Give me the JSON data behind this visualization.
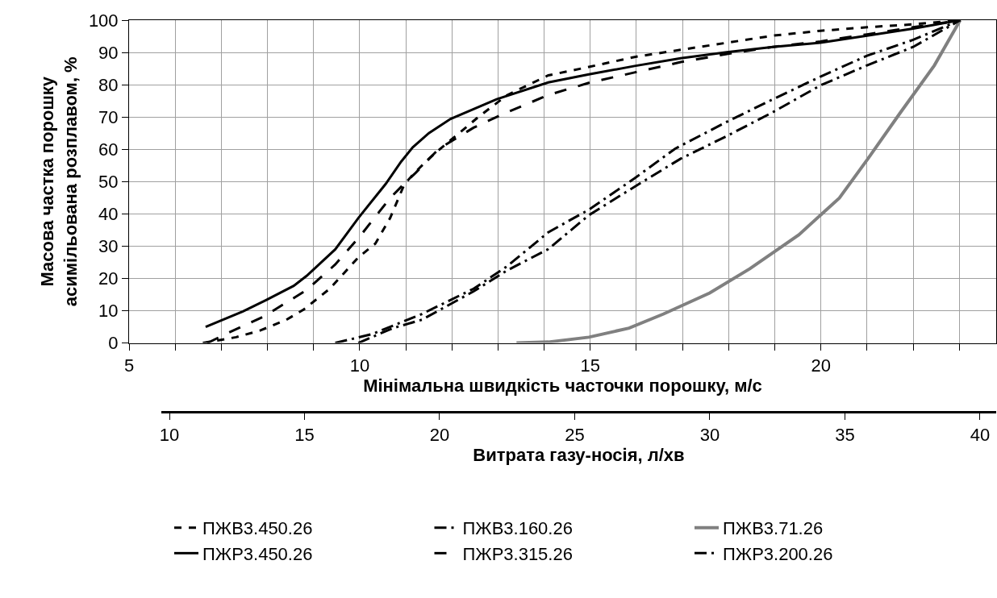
{
  "chart_data": {
    "type": "line",
    "xlabel": "Мінімальна швидкість часточки порошку, м/с",
    "ylabel": "Масова частка порошку асимільована розплавом, %",
    "x2label": "Витрата газу-носія, л/хв",
    "xlim": [
      5,
      23.8
    ],
    "ylim": [
      0,
      100
    ],
    "xticks": [
      5,
      {
        "value": 6,
        "label": null
      },
      {
        "value": 7,
        "label": null
      },
      {
        "value": 8,
        "label": null
      },
      {
        "value": 9,
        "label": null
      },
      10,
      {
        "value": 11,
        "label": null
      },
      {
        "value": 12,
        "label": null
      },
      {
        "value": 13,
        "label": null
      },
      {
        "value": 14,
        "label": null
      },
      15,
      {
        "value": 16,
        "label": null
      },
      {
        "value": 17,
        "label": null
      },
      {
        "value": 18,
        "label": null
      },
      {
        "value": 19,
        "label": null
      },
      20,
      {
        "value": 21,
        "label": null
      },
      {
        "value": 22,
        "label": null
      },
      {
        "value": 23,
        "label": null
      }
    ],
    "yticks": [
      0,
      10,
      20,
      30,
      40,
      50,
      60,
      70,
      80,
      90,
      100
    ],
    "x2lim": [
      9.7,
      40.6
    ],
    "x2ticks": [
      10,
      15,
      20,
      25,
      30,
      35,
      40
    ],
    "grid": true,
    "legend": "bottom",
    "marker": "none",
    "series": [
      {
        "name": "ПЖВ3.450.26",
        "color": "#000000",
        "line_style": "dotted",
        "x": [
          6.6,
          7.32,
          7.85,
          8.41,
          8.78,
          9.35,
          9.97,
          10.34,
          10.66,
          10.97,
          11.19,
          11.53,
          11.97,
          12.59,
          13.2,
          14.09,
          14.97,
          15.96,
          16.96,
          17.96,
          18.96,
          19.99,
          21.0,
          22.0,
          23.02
        ],
        "values": [
          0,
          1.8,
          3.9,
          7.2,
          10.3,
          16.8,
          26.5,
          30.8,
          38.7,
          49.2,
          52.7,
          57.5,
          62.8,
          70.2,
          76.8,
          82.9,
          85.5,
          88.6,
          90.8,
          93.0,
          95.2,
          96.7,
          97.8,
          98.7,
          100
        ]
      },
      {
        "name": "ПЖВ3.160.26",
        "color": "#000000",
        "line_style": "dashdot",
        "x": [
          9.47,
          10.28,
          11.35,
          12.47,
          13.2,
          14.09,
          14.97,
          15.96,
          16.84,
          17.96,
          18.96,
          19.99,
          21.0,
          22.0,
          23.02
        ],
        "values": [
          0,
          2.8,
          9.0,
          16.8,
          23.8,
          34.3,
          41.3,
          51.0,
          60.2,
          68.5,
          75.5,
          82.5,
          89.0,
          93.9,
          100
        ]
      },
      {
        "name": "ПЖВ3.71.26",
        "color": "#808080",
        "line_style": "solid",
        "x": [
          13.4,
          14.09,
          14.97,
          15.84,
          16.59,
          17.59,
          18.46,
          19.52,
          19.99,
          20.4,
          21.02,
          21.71,
          22.46,
          23.02
        ],
        "values": [
          0,
          0.3,
          1.8,
          4.6,
          9.0,
          15.5,
          23.0,
          33.5,
          39.6,
          44.9,
          57.1,
          71.1,
          86.0,
          100
        ]
      },
      {
        "name": "ПЖР3.450.26",
        "color": "#000000",
        "line_style": "solid",
        "x": [
          6.66,
          7.47,
          7.97,
          8.57,
          8.85,
          9.47,
          9.97,
          10.56,
          10.9,
          11.15,
          11.5,
          11.97,
          12.97,
          14.09,
          14.97,
          15.96,
          16.96,
          17.96,
          18.96,
          19.99,
          21.0,
          22.0,
          23.02
        ],
        "values": [
          5,
          9.8,
          13.3,
          17.7,
          20.8,
          29,
          38.7,
          49.2,
          56.2,
          60.6,
          65,
          69.4,
          75.5,
          80.7,
          83.2,
          85.8,
          88.2,
          90.1,
          91.7,
          93.0,
          95.2,
          97.4,
          100
        ]
      },
      {
        "name": "ПЖР3.315.26",
        "color": "#000000",
        "line_style": "dashed",
        "x": [
          6.7,
          7.1,
          7.91,
          8.85,
          9.47,
          10.03,
          10.66,
          10.97,
          11.22,
          11.72,
          12.47,
          13.2,
          14.09,
          14.97,
          15.96,
          16.96,
          17.96,
          18.96,
          19.99,
          21.0,
          22.0,
          23.02
        ],
        "values": [
          0,
          2.8,
          8.1,
          16.4,
          24.3,
          33.5,
          44.9,
          49.4,
          52.8,
          60.2,
          66.7,
          71.5,
          76.8,
          80.6,
          83.8,
          87.0,
          89.5,
          91.7,
          93.4,
          95.6,
          97.8,
          100
        ]
      },
      {
        "name": "ПЖР3.200.26",
        "color": "#000000",
        "line_style": "dashdot",
        "x": [
          9.97,
          10.72,
          11.35,
          12.47,
          13.2,
          14.09,
          14.97,
          15.96,
          16.96,
          17.96,
          18.96,
          19.99,
          21.0,
          22.0,
          23.02
        ],
        "values": [
          0,
          4.6,
          7.2,
          16.0,
          22.5,
          29.1,
          39.6,
          48.4,
          57.1,
          64.1,
          71.5,
          79.8,
          86.0,
          91.7,
          100
        ]
      }
    ]
  }
}
